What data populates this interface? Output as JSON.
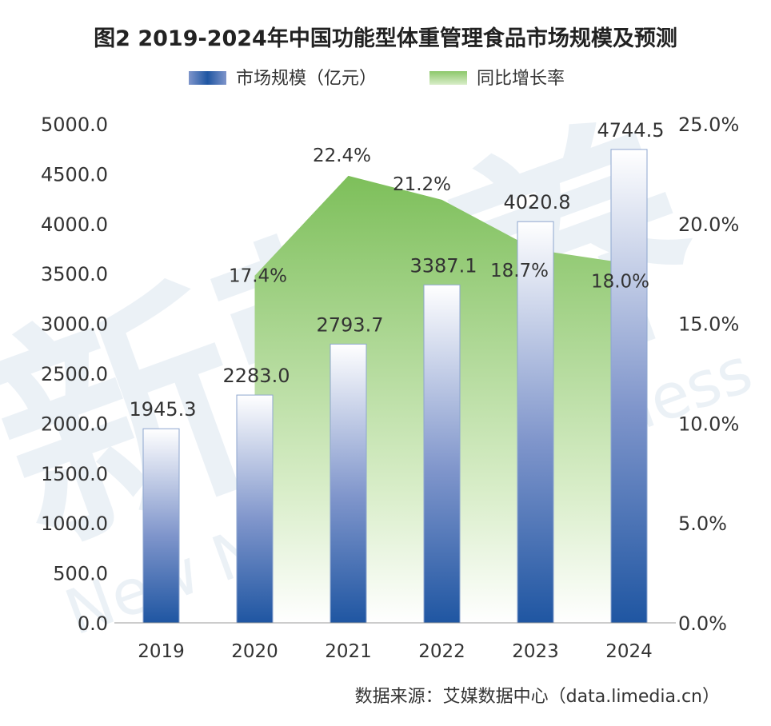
{
  "chart_data": {
    "type": "bar",
    "title": "图2 2019-2024年中国功能型体重管理食品市场规模及预测",
    "categories": [
      "2019",
      "2020",
      "2021",
      "2022",
      "2023",
      "2024"
    ],
    "series": [
      {
        "name": "市场规模（亿元）",
        "type": "bar",
        "axis": "left",
        "values": [
          1945.3,
          2283.0,
          2793.7,
          3387.1,
          4020.8,
          4744.5
        ],
        "labels": [
          "1945.3",
          "2283.0",
          "2793.7",
          "3387.1",
          "4020.8",
          "4744.5"
        ]
      },
      {
        "name": "同比增长率",
        "type": "area",
        "axis": "right",
        "values": [
          null,
          17.4,
          22.4,
          21.2,
          18.7,
          18.0
        ],
        "labels": [
          "",
          "17.4%",
          "22.4%",
          "21.2%",
          "18.7%",
          "18.0%"
        ]
      }
    ],
    "y_left": {
      "min": 0,
      "max": 5000,
      "ticks": [
        "0.0",
        "500.0",
        "1000.0",
        "1500.0",
        "2000.0",
        "2500.0",
        "3000.0",
        "3500.0",
        "4000.0",
        "4500.0",
        "5000.0"
      ]
    },
    "y_right": {
      "min": 0,
      "max": 25,
      "ticks": [
        "0.0%",
        "5.0%",
        "10.0%",
        "15.0%",
        "20.0%",
        "25.0%"
      ]
    },
    "legend_position": "top-center",
    "grid": false,
    "colors": {
      "bar_dark": "#1f56a2",
      "bar_light": "#ffffff",
      "area_dark": "#7dbf5a",
      "area_light": "#ffffff",
      "bar_stroke": "#8ea6cf",
      "text": "#333333"
    }
  },
  "source": "数据来源：艾媒数据中心（data.limedia.cn）",
  "watermark": {
    "main": "新营养",
    "sub": "New Nutrition Business"
  }
}
